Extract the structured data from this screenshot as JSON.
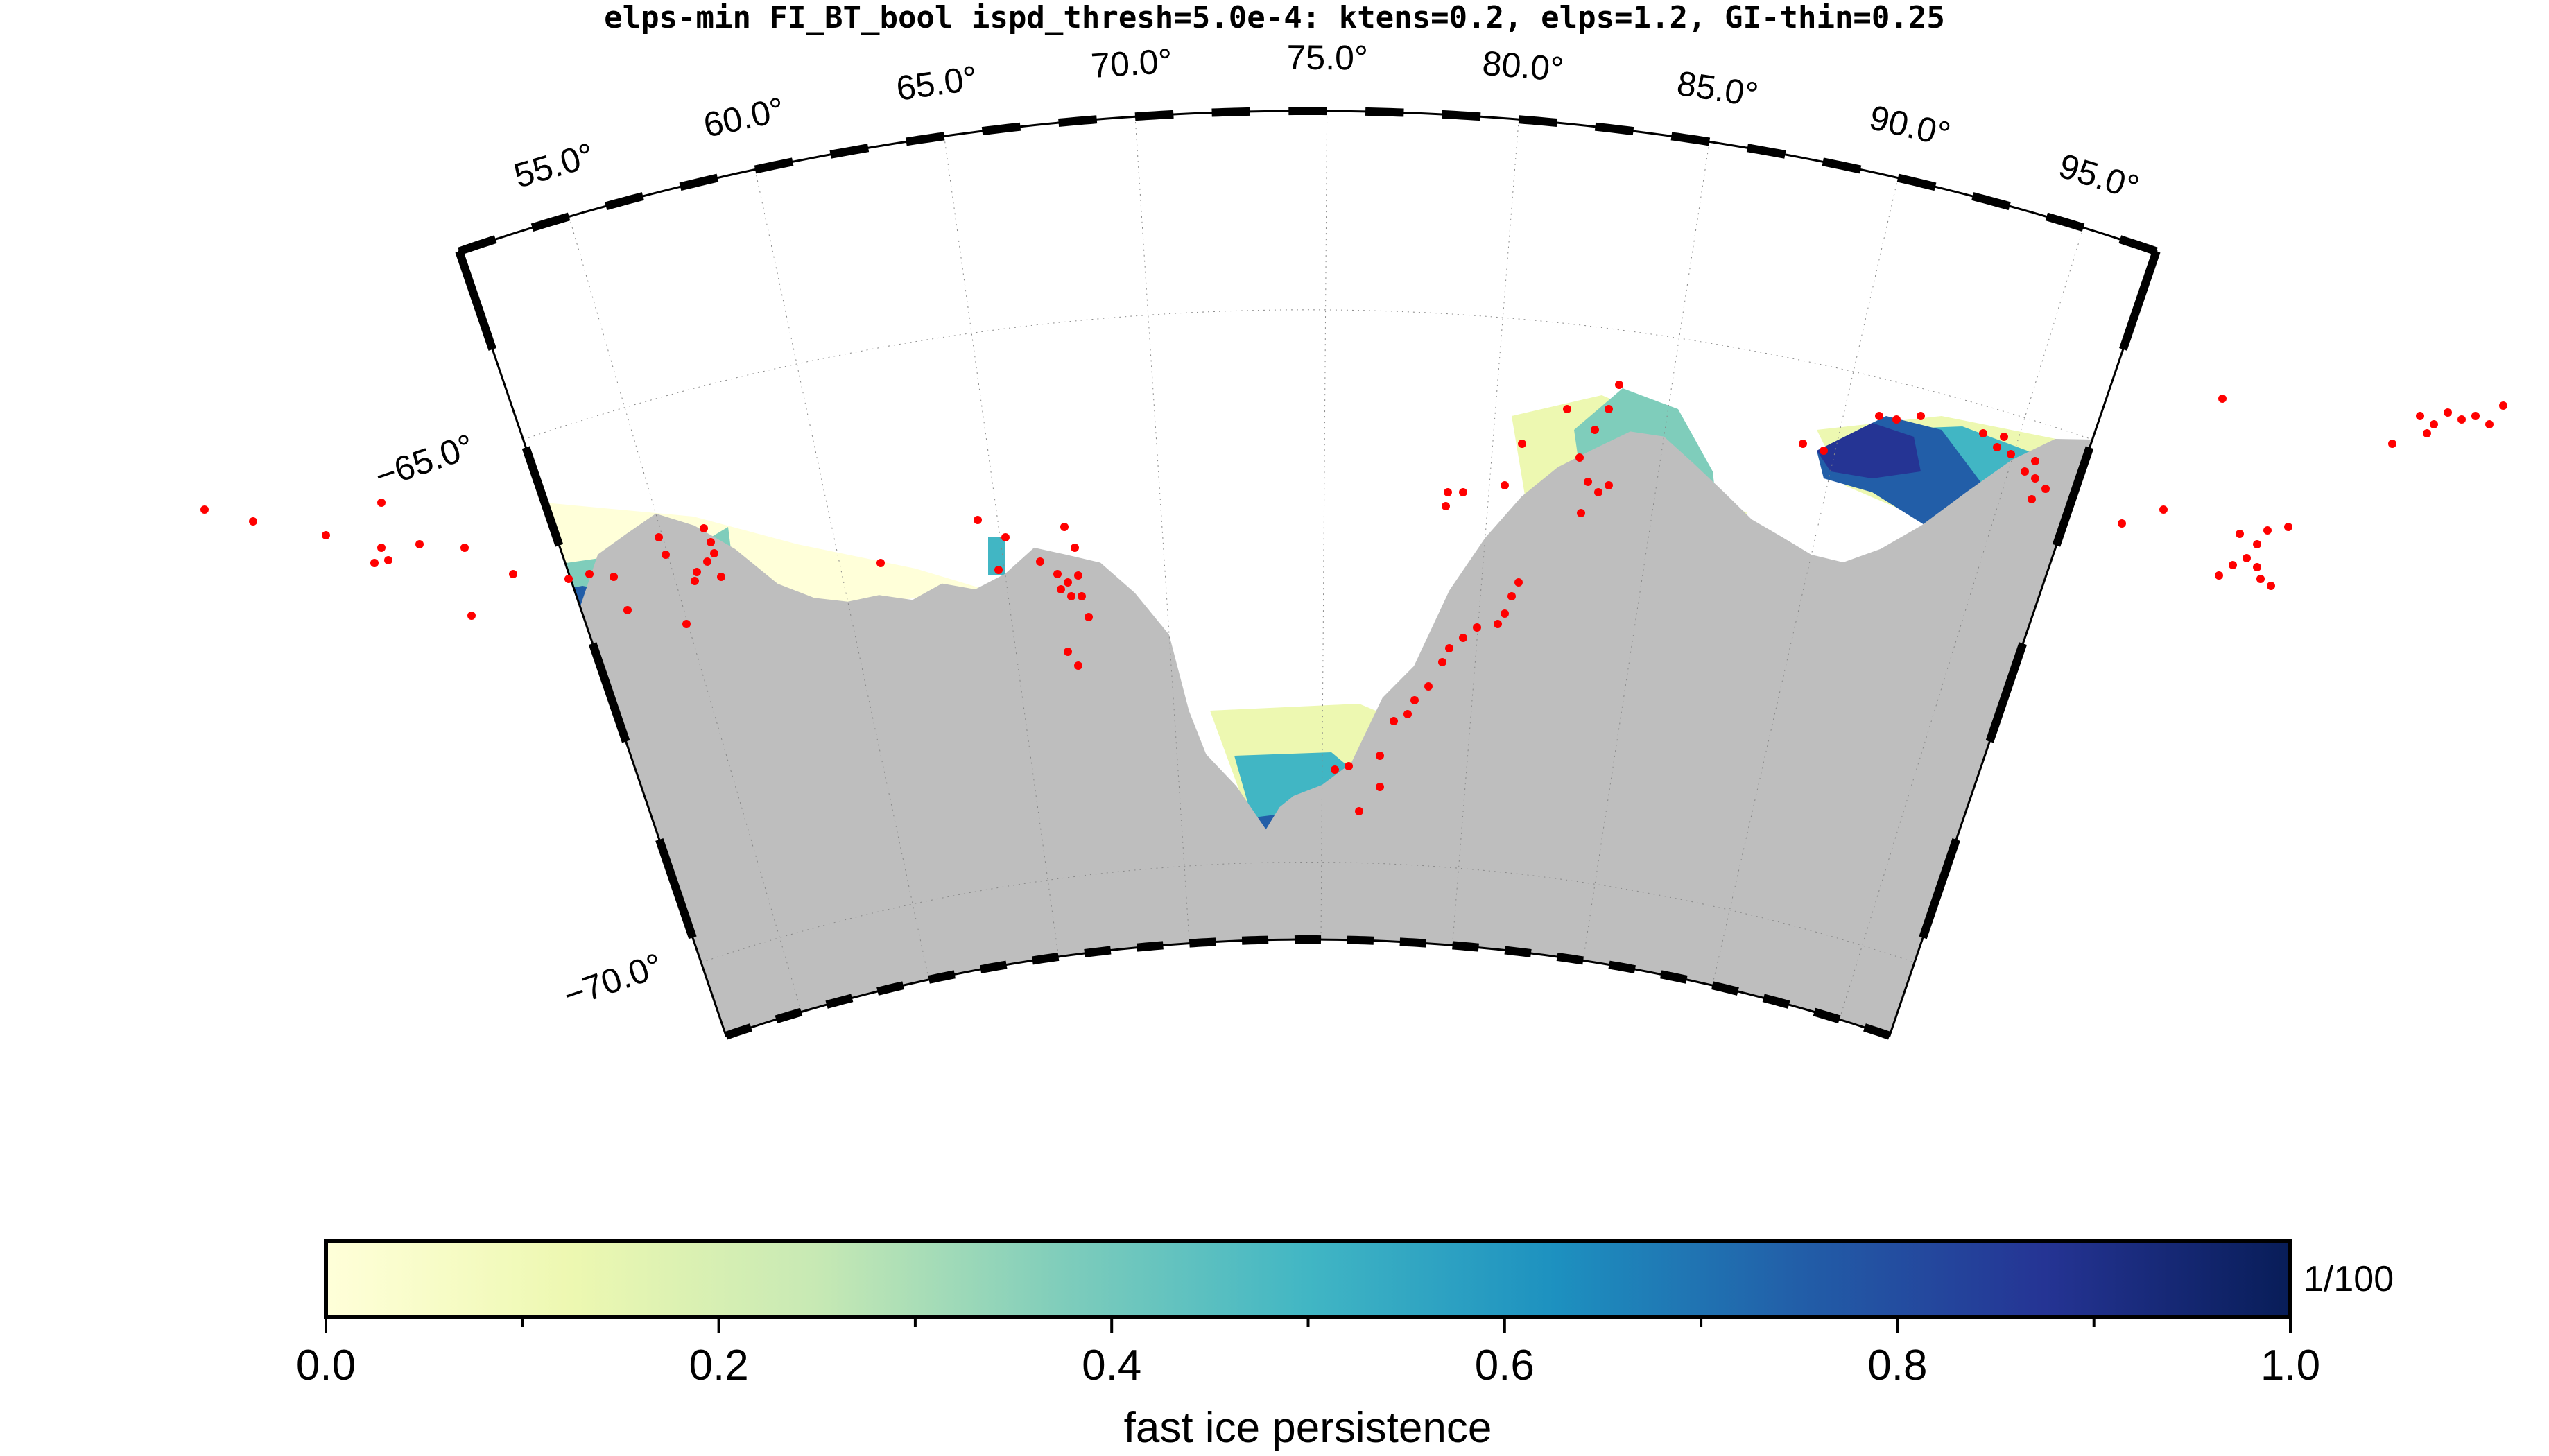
{
  "title": "elps-min FI_BT_bool ispd_thresh=5.0e-4: ktens=0.2, elps=1.2, GI-thin=0.25",
  "map": {
    "lon_labels": [
      "55.0°",
      "60.0°",
      "65.0°",
      "70.0°",
      "75.0°",
      "80.0°",
      "85.0°",
      "90.0°",
      "95.0°"
    ],
    "lat_labels": [
      "−65.0°",
      "−70.0°"
    ],
    "land_color": "#bebebe",
    "point_color": "#ff0000"
  },
  "colorbar": {
    "tick_labels": [
      "0.0",
      "0.2",
      "0.4",
      "0.6",
      "0.8",
      "1.0"
    ],
    "scale_label": "1/100",
    "label": "fast ice persistence",
    "colormap": [
      "#ffffd9",
      "#edf8b1",
      "#c7e9b4",
      "#7fcdbb",
      "#41b6c4",
      "#1d91c0",
      "#225ea8",
      "#253494",
      "#081d58"
    ]
  }
}
